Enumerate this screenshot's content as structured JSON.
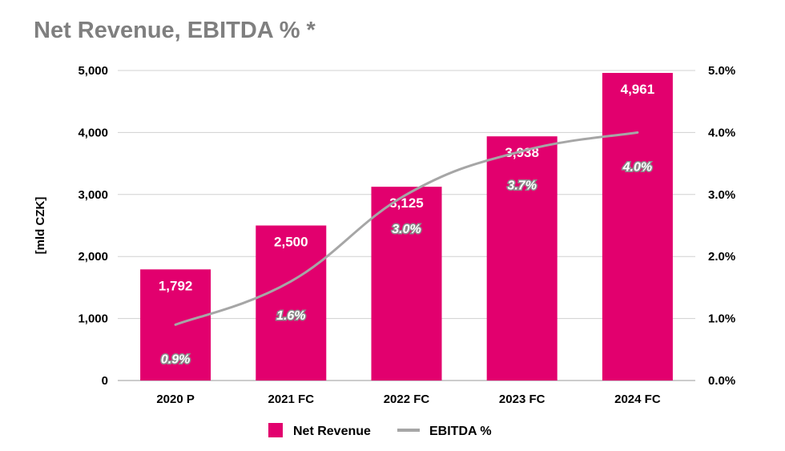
{
  "chart_data": {
    "type": "bar",
    "title": "Net Revenue, EBITDA % *",
    "ylabel": "[mld CZK]",
    "categories": [
      "2020 P",
      "2021 FC",
      "2022 FC",
      "2023 FC",
      "2024 FC"
    ],
    "series": [
      {
        "name": "Net Revenue",
        "type": "bar",
        "axis": "left",
        "color": "#e2006e",
        "values": [
          1792,
          2500,
          3125,
          3938,
          4961
        ],
        "labels": [
          "1,792",
          "2,500",
          "3,125",
          "3,938",
          "4,961"
        ]
      },
      {
        "name": "EBITDA %",
        "type": "line",
        "axis": "right",
        "color": "#a6a6a6",
        "values": [
          0.9,
          1.6,
          3.0,
          3.7,
          4.0
        ],
        "labels": [
          "0.9%",
          "1.6%",
          "3.0%",
          "3.7%",
          "4.0%"
        ]
      }
    ],
    "left_axis": {
      "ylim": [
        0,
        5000
      ],
      "ticks": [
        0,
        1000,
        2000,
        3000,
        4000,
        5000
      ],
      "tick_labels": [
        "0",
        "1,000",
        "2,000",
        "3,000",
        "4,000",
        "5,000"
      ]
    },
    "right_axis": {
      "ylim": [
        0,
        5.0
      ],
      "ticks": [
        0,
        1,
        2,
        3,
        4,
        5
      ],
      "tick_labels": [
        "0.0%",
        "1.0%",
        "2.0%",
        "3.0%",
        "4.0%",
        "5.0%"
      ]
    },
    "grid": true,
    "legend": "bottom"
  }
}
